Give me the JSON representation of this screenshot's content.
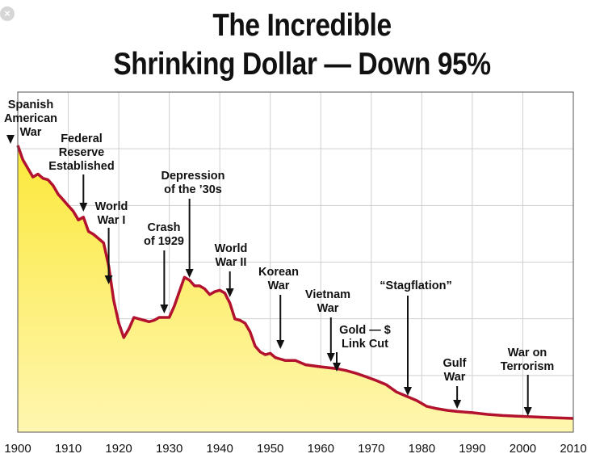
{
  "corner_icon": "close-icon",
  "chart_data": {
    "type": "area",
    "title_line1": "The Incredible",
    "title_line2": "Shrinking Dollar — Down 95%",
    "xlabel": "",
    "ylabel": "",
    "xlim": [
      1900,
      2010
    ],
    "ylim": [
      0,
      100
    ],
    "grid": true,
    "colors": {
      "line": "#b3122e",
      "fill_top": "#fbe83a",
      "fill_bottom": "#fff6b0",
      "grid": "#cfcfcf",
      "frame": "#555555"
    },
    "x_ticks": [
      "1900",
      "1910",
      "1920",
      "1930",
      "1940",
      "1950",
      "1960",
      "1970",
      "1980",
      "1990",
      "2000",
      "2010"
    ],
    "series": [
      {
        "points": [
          [
            1900,
            100
          ],
          [
            1901,
            95
          ],
          [
            1902,
            92
          ],
          [
            1903,
            89
          ],
          [
            1904,
            90
          ],
          [
            1905,
            88.5
          ],
          [
            1906,
            88
          ],
          [
            1907,
            86
          ],
          [
            1908,
            83
          ],
          [
            1909,
            81
          ],
          [
            1910,
            79
          ],
          [
            1911,
            77
          ],
          [
            1912,
            74
          ],
          [
            1913,
            75
          ],
          [
            1914,
            70
          ],
          [
            1915,
            69
          ],
          [
            1916,
            67.5
          ],
          [
            1917,
            66
          ],
          [
            1918,
            58
          ],
          [
            1919,
            46
          ],
          [
            1920,
            38
          ],
          [
            1921,
            33
          ],
          [
            1922,
            36
          ],
          [
            1923,
            40
          ],
          [
            1924,
            39.5
          ],
          [
            1925,
            39
          ],
          [
            1926,
            38.5
          ],
          [
            1927,
            39
          ],
          [
            1928,
            40
          ],
          [
            1929,
            40
          ],
          [
            1930,
            40
          ],
          [
            1931,
            44
          ],
          [
            1932,
            49
          ],
          [
            1933,
            54
          ],
          [
            1934,
            53
          ],
          [
            1935,
            51
          ],
          [
            1936,
            51
          ],
          [
            1937,
            50
          ],
          [
            1938,
            48
          ],
          [
            1939,
            49
          ],
          [
            1940,
            49.5
          ],
          [
            1941,
            48.5
          ],
          [
            1942,
            45
          ],
          [
            1943,
            39.5
          ],
          [
            1944,
            39
          ],
          [
            1945,
            38
          ],
          [
            1946,
            35
          ],
          [
            1947,
            30
          ],
          [
            1948,
            28
          ],
          [
            1949,
            27
          ],
          [
            1950,
            27.5
          ],
          [
            1951,
            26
          ],
          [
            1952,
            25.5
          ],
          [
            1953,
            25
          ],
          [
            1955,
            25
          ],
          [
            1957,
            23.5
          ],
          [
            1960,
            22.8
          ],
          [
            1963,
            22.2
          ],
          [
            1965,
            21.5
          ],
          [
            1967,
            20.5
          ],
          [
            1969,
            19.3
          ],
          [
            1971,
            18
          ],
          [
            1973,
            16.5
          ],
          [
            1975,
            14
          ],
          [
            1977,
            12.5
          ],
          [
            1979,
            11
          ],
          [
            1981,
            9
          ],
          [
            1983,
            8.2
          ],
          [
            1985,
            7.6
          ],
          [
            1987,
            7.2
          ],
          [
            1990,
            6.8
          ],
          [
            1993,
            6.2
          ],
          [
            1996,
            5.8
          ],
          [
            2000,
            5.5
          ],
          [
            2005,
            5.1
          ],
          [
            2010,
            4.8
          ]
        ]
      }
    ],
    "annotations": [
      {
        "lines": [
          "Spanish",
          "American",
          "War"
        ],
        "year": 1900
      },
      {
        "lines": [
          "Federal",
          "Reserve",
          "Established"
        ],
        "year": 1913
      },
      {
        "lines": [
          "World",
          "War I"
        ],
        "year": 1918
      },
      {
        "lines": [
          "Crash",
          "of 1929"
        ],
        "year": 1929
      },
      {
        "lines": [
          "Depression",
          "of the ’30s"
        ],
        "year": 1934
      },
      {
        "lines": [
          "World",
          "War II"
        ],
        "year": 1942
      },
      {
        "lines": [
          "Korean",
          "War"
        ],
        "year": 1952
      },
      {
        "lines": [
          "Vietnam",
          "War"
        ],
        "year": 1962
      },
      {
        "lines": [
          "Gold — $",
          "Link Cut"
        ],
        "year": 1968
      },
      {
        "lines": [
          "“Stagflation”"
        ],
        "year": 1978
      },
      {
        "lines": [
          "Gulf",
          "War"
        ],
        "year": 1987
      },
      {
        "lines": [
          "War on",
          "Terrorism"
        ],
        "year": 2001
      }
    ]
  }
}
